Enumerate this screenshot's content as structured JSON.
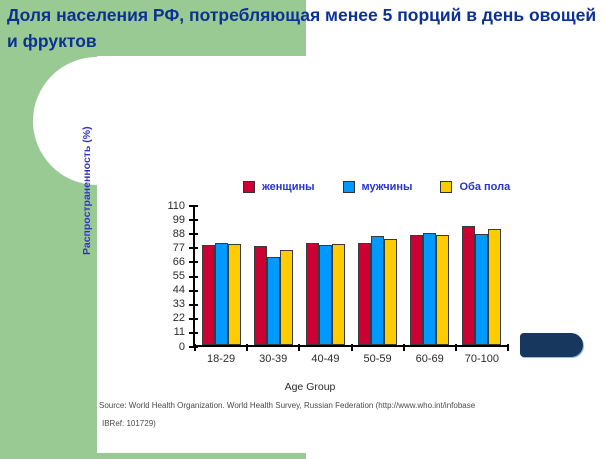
{
  "slide": {
    "title": "Доля населения РФ, потребляющая менее 5 порций в день овощей и фруктов",
    "source_line1": "Source: World Health Organization. World Health Survey, Russian Federation  (http://www.who.int/infobase",
    "source_line2": "IBRef: 101729)"
  },
  "colors": {
    "green": "#9aca94",
    "navy": "#17375e",
    "title": "#0c3193",
    "blue_text": "#2733cc",
    "series_red": "#cc0033",
    "series_blue": "#0099ff",
    "series_yellow": "#ffcc00"
  },
  "chart_data": {
    "type": "bar",
    "title": "",
    "categories": [
      "18-29",
      "30-39",
      "40-49",
      "50-59",
      "60-69",
      "70-100"
    ],
    "series": [
      {
        "name": "женщины",
        "color": "#cc0033",
        "values": [
          79,
          78,
          81,
          81,
          87,
          94
        ]
      },
      {
        "name": "мужчины",
        "color": "#0099ff",
        "values": [
          81,
          70,
          79,
          86,
          89,
          88
        ]
      },
      {
        "name": "Оба пола",
        "color": "#ffcc00",
        "values": [
          80,
          75,
          80,
          84,
          87,
          92
        ]
      }
    ],
    "xlabel": "Age Group",
    "ylabel": "Распространенность (%)",
    "ylim": [
      0,
      110
    ],
    "yticks": [
      0,
      11,
      22,
      33,
      44,
      55,
      66,
      77,
      88,
      99,
      110
    ],
    "legend_position": "top",
    "grid": "off"
  }
}
